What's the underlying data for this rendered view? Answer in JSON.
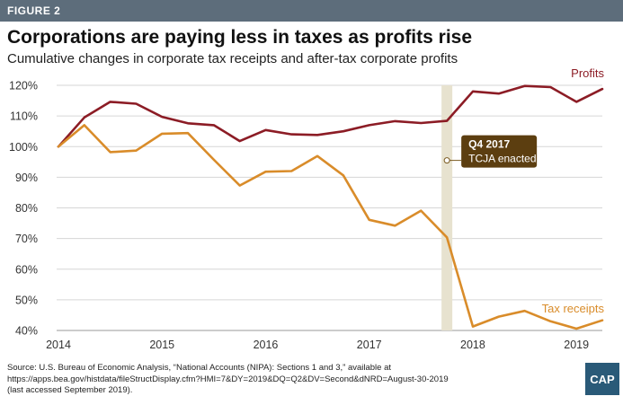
{
  "header": {
    "figure_label": "FIGURE 2",
    "title": "Corporations are paying less in taxes as profits rise",
    "subtitle": "Cumulative changes in corporate tax receipts and after-tax corporate profits"
  },
  "chart_data": {
    "type": "line",
    "title": "Corporations are paying less in taxes as profits rise",
    "subtitle": "Cumulative changes in corporate tax receipts and after-tax corporate profits",
    "xlabel": "",
    "ylabel": "",
    "y_tick_labels": [
      "120%",
      "110%",
      "100%",
      "90%",
      "80%",
      "70%",
      "60%",
      "50%",
      "40%"
    ],
    "y_ticks": [
      120,
      110,
      100,
      90,
      80,
      70,
      60,
      50,
      40
    ],
    "ylim": [
      40,
      120
    ],
    "x_tick_labels": [
      "2014",
      "2015",
      "2016",
      "2017",
      "2018",
      "2019"
    ],
    "x_ticks": [
      2014,
      2015,
      2016,
      2017,
      2018,
      2019
    ],
    "xlim": [
      2014,
      2019.25
    ],
    "grid": "horizontal",
    "series": [
      {
        "name": "Profits",
        "color": "#8c1c25",
        "x": [
          2014.0,
          2014.25,
          2014.5,
          2014.75,
          2015.0,
          2015.25,
          2015.5,
          2015.75,
          2016.0,
          2016.25,
          2016.5,
          2016.75,
          2017.0,
          2017.25,
          2017.5,
          2017.75,
          2018.0,
          2018.25,
          2018.5,
          2018.75,
          2019.0,
          2019.25
        ],
        "values": [
          100,
          109.5,
          114.6,
          114,
          109.7,
          107.6,
          107,
          101.8,
          105.4,
          104,
          103.8,
          105,
          107,
          108.3,
          107.7,
          108.4,
          118,
          117.3,
          119.8,
          119.4,
          114.6,
          118.8
        ]
      },
      {
        "name": "Tax receipts",
        "color": "#d98c2a",
        "x": [
          2014.0,
          2014.25,
          2014.5,
          2014.75,
          2015.0,
          2015.25,
          2015.5,
          2015.75,
          2016.0,
          2016.25,
          2016.5,
          2016.75,
          2017.0,
          2017.25,
          2017.5,
          2017.75,
          2018.0,
          2018.25,
          2018.5,
          2018.75,
          2019.0,
          2019.25
        ],
        "values": [
          100,
          107,
          98.2,
          98.7,
          104.2,
          104.4,
          95.7,
          87.3,
          91.8,
          92,
          96.9,
          90.6,
          76.1,
          74.2,
          79.1,
          70.4,
          41.3,
          44.5,
          46.4,
          43,
          40.6,
          43.3
        ]
      }
    ],
    "annotations": [
      {
        "label_line1": "Q4 2017",
        "label_line2": "TCJA enacted",
        "x": 2017.75,
        "marker_y": 95.5
      }
    ]
  },
  "source": {
    "line1": "Source: U.S. Bureau of Economic Analysis, “National Accounts (NIPA): Sections 1 and 3,” available at",
    "line2": "https://apps.bea.gov/histdata/fileStructDisplay.cfm?HMI=7&DY=2019&DQ=Q2&DV=Second&dNRD=August-30-2019",
    "line3": "(last accessed September 2019)."
  },
  "logo": {
    "text": "CAP"
  },
  "colors": {
    "header_bar": "#5d6d7b",
    "profits": "#8c1c25",
    "tax_receipts": "#d98c2a",
    "annotation_box": "#5c3e10",
    "annotation_band": "#e7e2cf",
    "logo_bg": "#2a5a78"
  }
}
